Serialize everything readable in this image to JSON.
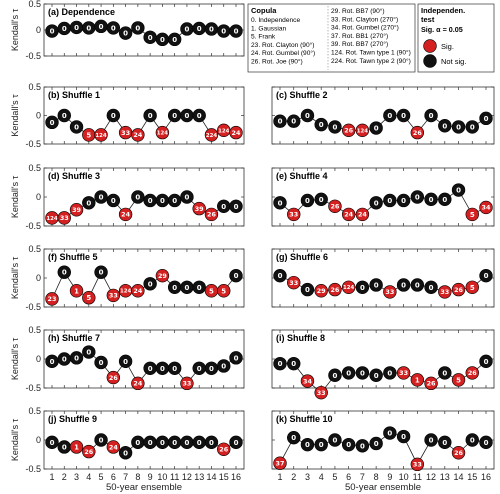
{
  "chart_data": {
    "type": "scatter",
    "x": [
      1,
      2,
      3,
      4,
      5,
      6,
      7,
      8,
      9,
      10,
      11,
      12,
      13,
      14,
      15,
      16
    ],
    "xlabel": "50-year ensemble",
    "ylabel": "Kendall's τ",
    "ylim": [
      -0.5,
      0.5
    ],
    "yticks": [
      -0.5,
      0,
      0.5
    ],
    "xticks": [
      1,
      2,
      3,
      4,
      5,
      6,
      7,
      8,
      9,
      10,
      11,
      12,
      13,
      14,
      15,
      16
    ],
    "panels": [
      {
        "title": "(a) Dependence",
        "tau": [
          -0.02,
          0.03,
          0.05,
          0.04,
          0.07,
          0.04,
          -0.06,
          0.04,
          -0.14,
          -0.18,
          -0.18,
          0.02,
          0.03,
          0.02,
          -0.02,
          -0.02
        ],
        "copula": [
          "0",
          "0",
          "0",
          "0",
          "0",
          "0",
          "0",
          "0",
          "0",
          "0",
          "0",
          "0",
          "0",
          "0",
          "0",
          "0"
        ],
        "sig": [
          0,
          0,
          0,
          0,
          0,
          0,
          0,
          0,
          0,
          0,
          0,
          0,
          0,
          0,
          0,
          0
        ]
      },
      {
        "title": "(b) Shuffle 1",
        "tau": [
          -0.12,
          0.0,
          -0.2,
          -0.34,
          -0.34,
          0.0,
          -0.3,
          -0.34,
          0.0,
          -0.3,
          0.0,
          0.0,
          0.0,
          -0.34,
          -0.26,
          -0.3
        ],
        "copula": [
          "0",
          "0",
          "0",
          "5",
          "124",
          "0",
          "33",
          "24",
          "0",
          "124",
          "0",
          "0",
          "0",
          "224",
          "124",
          "24"
        ],
        "sig": [
          0,
          0,
          0,
          1,
          1,
          0,
          1,
          1,
          0,
          1,
          0,
          0,
          0,
          1,
          1,
          1
        ]
      },
      {
        "title": "(c) Shuffle 2",
        "tau": [
          -0.1,
          -0.1,
          0.0,
          -0.16,
          -0.2,
          -0.26,
          -0.26,
          -0.22,
          0.0,
          0.0,
          -0.3,
          0.0,
          -0.18,
          -0.2,
          -0.2,
          -0.05
        ],
        "copula": [
          "0",
          "0",
          "0",
          "0",
          "0",
          "26",
          "124",
          "0",
          "0",
          "0",
          "26",
          "0",
          "0",
          "0",
          "0",
          "0"
        ],
        "sig": [
          0,
          0,
          0,
          0,
          0,
          1,
          1,
          0,
          0,
          0,
          1,
          0,
          0,
          0,
          0,
          0
        ]
      },
      {
        "title": "(d) Shuffle 3",
        "tau": [
          -0.36,
          -0.36,
          -0.22,
          -0.1,
          0.0,
          -0.06,
          -0.3,
          0.0,
          -0.06,
          -0.06,
          -0.06,
          0.0,
          -0.2,
          -0.3,
          -0.16,
          -0.16
        ],
        "copula": [
          "124",
          "33",
          "39",
          "0",
          "0",
          "0",
          "24",
          "0",
          "0",
          "0",
          "0",
          "0",
          "39",
          "26",
          "0",
          "0"
        ],
        "sig": [
          1,
          1,
          1,
          0,
          0,
          0,
          1,
          0,
          0,
          0,
          0,
          0,
          1,
          1,
          0,
          0
        ]
      },
      {
        "title": "(e) Shuffle 4",
        "tau": [
          -0.1,
          -0.3,
          -0.06,
          -0.04,
          -0.16,
          -0.3,
          -0.3,
          -0.1,
          -0.06,
          -0.06,
          0.0,
          -0.04,
          -0.04,
          0.12,
          -0.3,
          -0.18
        ],
        "copula": [
          "0",
          "33",
          "0",
          "0",
          "26",
          "24",
          "24",
          "0",
          "0",
          "0",
          "0",
          "0",
          "0",
          "0",
          "5",
          "34"
        ],
        "sig": [
          0,
          1,
          0,
          0,
          1,
          1,
          1,
          0,
          0,
          0,
          0,
          0,
          0,
          0,
          1,
          1
        ]
      },
      {
        "title": "(f) Shuffle 5",
        "tau": [
          -0.36,
          0.1,
          -0.22,
          -0.34,
          0.1,
          -0.3,
          -0.22,
          -0.22,
          -0.1,
          0.04,
          -0.16,
          -0.16,
          -0.16,
          -0.22,
          -0.22,
          0.04
        ],
        "copula": [
          "23",
          "0",
          "1",
          "5",
          "0",
          "33",
          "124",
          "24",
          "0",
          "29",
          "0",
          "0",
          "0",
          "5",
          "5",
          "0"
        ],
        "sig": [
          1,
          0,
          1,
          1,
          0,
          1,
          1,
          1,
          0,
          1,
          0,
          0,
          0,
          1,
          1,
          0
        ]
      },
      {
        "title": "(g) Shuffle 6",
        "tau": [
          0.04,
          -0.08,
          -0.2,
          -0.22,
          -0.2,
          -0.16,
          -0.16,
          -0.12,
          -0.24,
          -0.12,
          -0.12,
          -0.16,
          -0.24,
          -0.2,
          -0.16,
          0.04
        ],
        "copula": [
          "0",
          "33",
          "0",
          "29",
          "26",
          "124",
          "0",
          "0",
          "33",
          "0",
          "0",
          "0",
          "33",
          "26",
          "5",
          "0"
        ],
        "sig": [
          0,
          1,
          0,
          1,
          1,
          1,
          0,
          0,
          1,
          0,
          0,
          0,
          1,
          1,
          1,
          0
        ]
      },
      {
        "title": "(h) Shuffle 7",
        "tau": [
          -0.04,
          0.0,
          0.02,
          0.12,
          -0.06,
          -0.32,
          -0.04,
          -0.42,
          -0.16,
          -0.16,
          -0.16,
          -0.42,
          -0.16,
          -0.16,
          -0.12,
          0.02
        ],
        "copula": [
          "0",
          "0",
          "0",
          "0",
          "0",
          "26",
          "0",
          "24",
          "0",
          "0",
          "0",
          "33",
          "0",
          "0",
          "0",
          "0"
        ],
        "sig": [
          0,
          0,
          0,
          0,
          0,
          1,
          0,
          1,
          0,
          0,
          0,
          1,
          0,
          0,
          0,
          0
        ]
      },
      {
        "title": "(i) Shuffle 8",
        "tau": [
          -0.08,
          -0.08,
          -0.38,
          -0.58,
          -0.28,
          -0.24,
          -0.24,
          -0.28,
          -0.24,
          -0.24,
          -0.36,
          -0.42,
          -0.24,
          -0.36,
          -0.24,
          -0.04
        ],
        "copula": [
          "0",
          "0",
          "34",
          "33",
          "0",
          "0",
          "0",
          "0",
          "0",
          "33",
          "1",
          "26",
          "0",
          "5",
          "26",
          "0"
        ],
        "sig": [
          0,
          0,
          1,
          1,
          0,
          0,
          0,
          0,
          0,
          1,
          1,
          1,
          0,
          1,
          1,
          0
        ]
      },
      {
        "title": "(j) Shuffle 9",
        "tau": [
          -0.04,
          -0.12,
          -0.12,
          -0.2,
          0.0,
          -0.12,
          -0.22,
          -0.04,
          -0.04,
          -0.04,
          -0.04,
          -0.04,
          -0.04,
          -0.04,
          -0.16,
          -0.04
        ],
        "copula": [
          "0",
          "0",
          "1",
          "26",
          "0",
          "24",
          "0",
          "0",
          "0",
          "0",
          "0",
          "0",
          "0",
          "0",
          "26",
          "0"
        ],
        "sig": [
          0,
          0,
          1,
          1,
          0,
          1,
          0,
          0,
          0,
          0,
          0,
          0,
          0,
          0,
          1,
          0
        ]
      },
      {
        "title": "(k) Shuffle 10",
        "tau": [
          -0.4,
          0.04,
          -0.08,
          -0.08,
          0.0,
          -0.08,
          -0.1,
          -0.06,
          0.12,
          0.06,
          -0.42,
          0.0,
          -0.04,
          -0.22,
          0.0,
          -0.04
        ],
        "copula": [
          "37",
          "0",
          "0",
          "0",
          "0",
          "0",
          "0",
          "0",
          "0",
          "0",
          "33",
          "0",
          "0",
          "26",
          "0",
          "0"
        ],
        "sig": [
          1,
          0,
          0,
          0,
          0,
          0,
          0,
          0,
          0,
          0,
          1,
          0,
          0,
          1,
          0,
          0
        ]
      }
    ],
    "legend": {
      "copula_title": "Copula",
      "col1": [
        "0. Independence",
        "1. Gaussian",
        "5. Frank",
        "23. Rot. Clayton (90°)",
        "24. Rot. Gumbel (90°)",
        "26. Rot. Joe (90°)"
      ],
      "col2": [
        "29. Rot. BB7 (90°)",
        "33. Rot. Clayton (270°)",
        "34. Rot. Gumbel (270°)",
        "37. Rot. BB1 (270°)",
        "39. Rot. BB7 (270°)",
        "124. Rot. Tawn type 1 (90°)",
        "224. Rot. Tawn type 2 (90°)"
      ],
      "test_title_1": "Independen.",
      "test_title_2": "test",
      "test_alpha": "Sig. α = 0.05",
      "sig_label": "Sig.",
      "notsig_label": "Not sig."
    },
    "colors": {
      "sig": "#d42020",
      "not_sig": "#111111",
      "line": "#222222"
    }
  }
}
